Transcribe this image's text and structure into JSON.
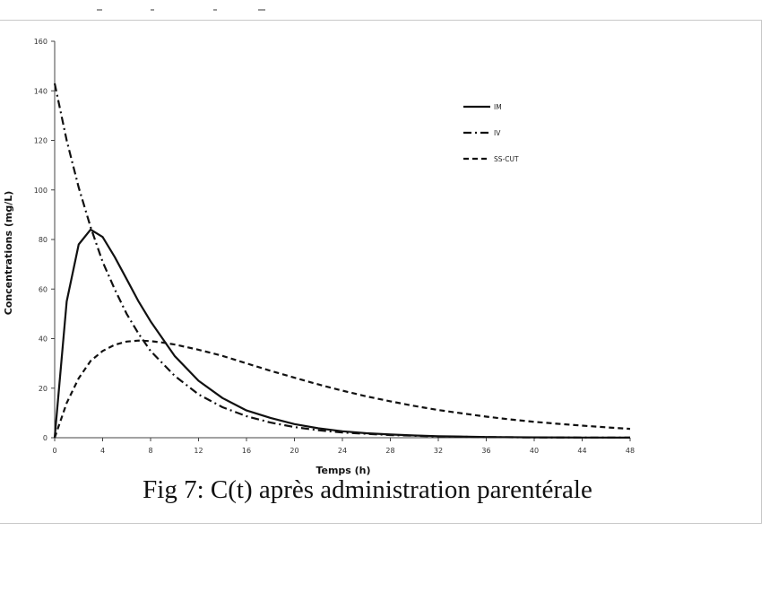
{
  "caption": "Fig 7: C(t) après administration parentérale",
  "chart_data": {
    "type": "line",
    "title": "",
    "xlabel": "Temps (h)",
    "ylabel": "Concentrations (mg/L)",
    "xlim": [
      0,
      48
    ],
    "ylim": [
      0,
      160
    ],
    "xticks": [
      0,
      4,
      8,
      12,
      16,
      20,
      24,
      28,
      32,
      36,
      40,
      44,
      48
    ],
    "yticks": [
      0,
      20,
      40,
      60,
      80,
      100,
      120,
      140,
      160
    ],
    "grid": false,
    "legend_position": "top-right",
    "series": [
      {
        "name": "IM",
        "style": "solid",
        "x": [
          0,
          1,
          2,
          3,
          4,
          5,
          6,
          7,
          8,
          10,
          12,
          14,
          16,
          18,
          20,
          22,
          24,
          26,
          28,
          30,
          32,
          36,
          40,
          44,
          48
        ],
        "y": [
          0,
          55,
          78,
          84,
          81,
          73,
          64,
          55,
          47,
          33,
          23,
          16,
          11,
          8,
          5.5,
          3.8,
          2.6,
          1.8,
          1.3,
          0.9,
          0.6,
          0.3,
          0.15,
          0.07,
          0.03
        ]
      },
      {
        "name": "IV",
        "style": "dashdot",
        "x": [
          0,
          1,
          2,
          3,
          4,
          5,
          6,
          7,
          8,
          10,
          12,
          14,
          16,
          18,
          20,
          22,
          24,
          28,
          32,
          36,
          40,
          44,
          48
        ],
        "y": [
          143,
          120,
          101,
          85,
          71,
          60,
          50,
          42,
          35,
          25,
          17.5,
          12.3,
          8.7,
          6.1,
          4.3,
          3.0,
          2.1,
          1.1,
          0.5,
          0.25,
          0.12,
          0.06,
          0.03
        ]
      },
      {
        "name": "SS-CUT",
        "style": "dashed",
        "x": [
          0,
          1,
          2,
          3,
          4,
          5,
          6,
          7,
          8,
          9,
          10,
          12,
          14,
          16,
          18,
          20,
          22,
          24,
          26,
          28,
          30,
          32,
          34,
          36,
          38,
          40,
          42,
          44,
          46,
          48
        ],
        "y": [
          0,
          14,
          24,
          31,
          35,
          37.5,
          38.8,
          39.2,
          39,
          38.4,
          37.6,
          35.5,
          33,
          30,
          27,
          24.2,
          21.5,
          19,
          16.7,
          14.7,
          12.8,
          11.2,
          9.8,
          8.5,
          7.4,
          6.4,
          5.6,
          4.9,
          4.2,
          3.6
        ]
      }
    ]
  }
}
